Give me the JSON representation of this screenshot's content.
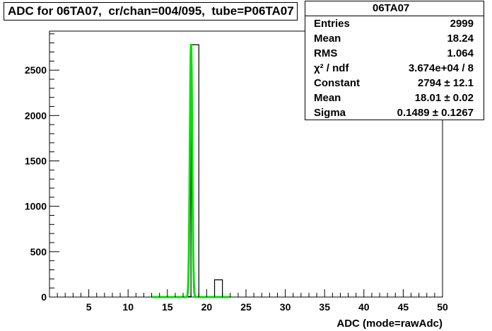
{
  "title": "ADC for 06TA07,  cr/chan=004/095,  tube=P06TA07",
  "stats": {
    "name": "06TA07",
    "rows": [
      {
        "label": "Entries",
        "value": "2999"
      },
      {
        "label": "Mean",
        "value": "18.24"
      },
      {
        "label": "RMS",
        "value": "1.064"
      },
      {
        "label": "χ² / ndf",
        "value": "3.674e+04 / 8"
      },
      {
        "label": "Constant",
        "value": "2794 ± 12.1"
      },
      {
        "label": "Mean",
        "value": "18.01 ± 0.02"
      },
      {
        "label": "Sigma",
        "value": "0.1489 ± 0.1267"
      }
    ]
  },
  "chart_data": {
    "type": "bar",
    "xlabel": "ADC (mode=rawAdc)",
    "ylabel": "",
    "xlim": [
      0,
      50
    ],
    "ylim": [
      0,
      2930
    ],
    "xticks": [
      5,
      10,
      15,
      20,
      25,
      30,
      35,
      40,
      45,
      50
    ],
    "yticks": [
      0,
      500,
      1000,
      1500,
      2000,
      2500
    ],
    "histogram": {
      "bin_width": 1,
      "bins": [
        {
          "x": 13,
          "value": 6
        },
        {
          "x": 14,
          "value": 5
        },
        {
          "x": 17,
          "value": 5
        },
        {
          "x": 18,
          "value": 2780
        },
        {
          "x": 21,
          "value": 190
        },
        {
          "x": 22,
          "value": 5
        }
      ]
    },
    "fit": {
      "function": "gaus",
      "constant": 2794,
      "mean": 18.01,
      "sigma": 0.1489,
      "range": [
        13,
        23
      ],
      "color": "#00e000"
    },
    "colors": {
      "histogram": "#000000",
      "fit": "#00e000"
    }
  }
}
